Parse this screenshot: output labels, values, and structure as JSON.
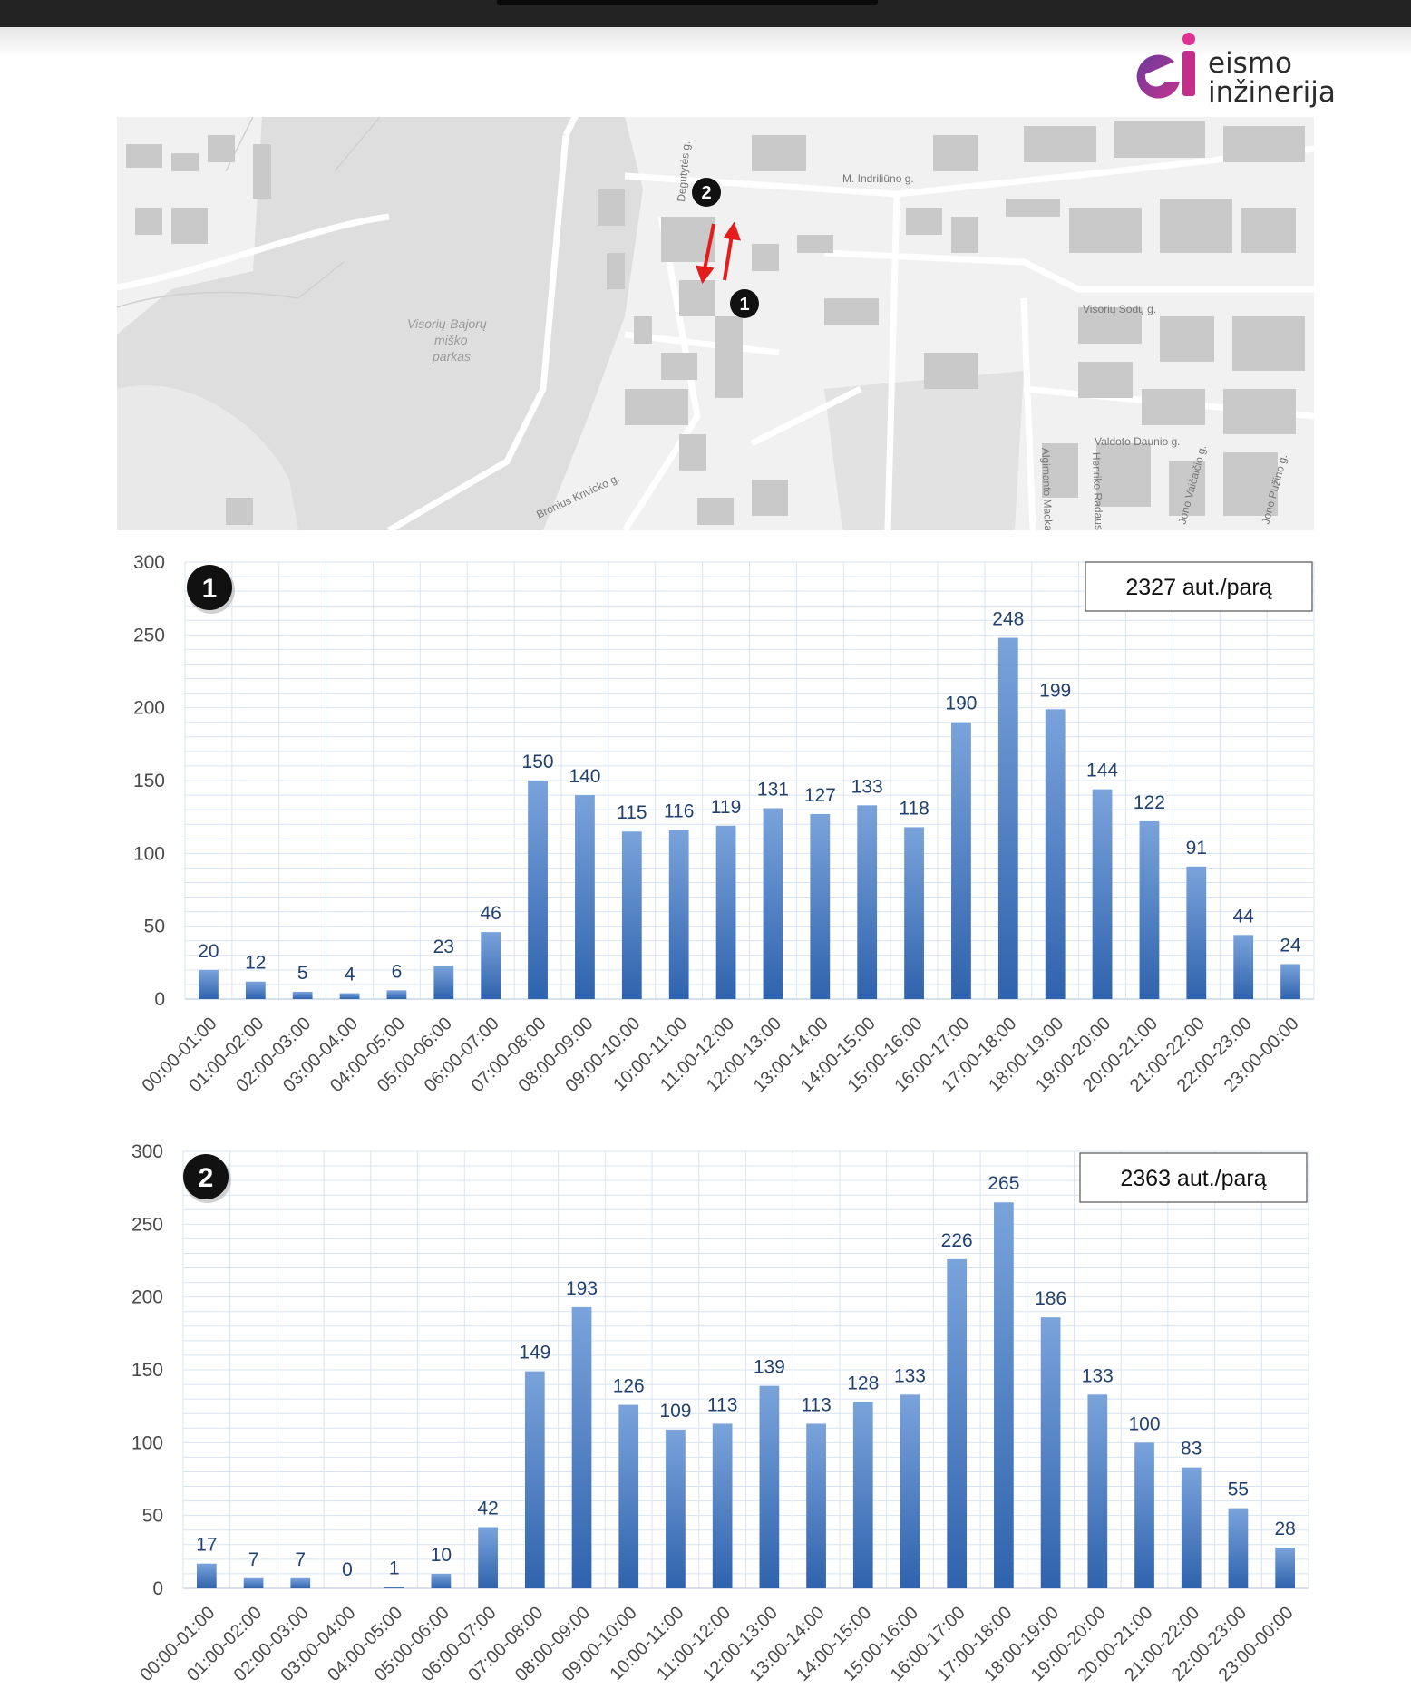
{
  "header": {
    "logo_text_line1": "eismo",
    "logo_text_line2": "inžinerija",
    "accent_colors": [
      "#7a3fa0",
      "#e0338f"
    ]
  },
  "map": {
    "park_label": [
      "Visorių-Bajorų",
      "miško",
      "parkas"
    ],
    "street_labels": [
      "M. Indriliūno g.",
      "Degutytės g.",
      "Bronius Krivicko g.",
      "Visorių Sodų g.",
      "Valdoto Daunio g.",
      "Henriko Radausko g.",
      "Algimanto Mackaus g.",
      "Jono Vaičaičio g.",
      "Jono Pužino g."
    ],
    "markers": [
      "1",
      "2"
    ],
    "direction_arrow_color": "#e51c1c"
  },
  "chart_data": [
    {
      "type": "bar",
      "marker": "1",
      "total_label": "2327 aut./parą",
      "categories": [
        "00:00-01:00",
        "01:00-02:00",
        "02:00-03:00",
        "03:00-04:00",
        "04:00-05:00",
        "05:00-06:00",
        "06:00-07:00",
        "07:00-08:00",
        "08:00-09:00",
        "09:00-10:00",
        "10:00-11:00",
        "11:00-12:00",
        "12:00-13:00",
        "13:00-14:00",
        "14:00-15:00",
        "15:00-16:00",
        "16:00-17:00",
        "17:00-18:00",
        "18:00-19:00",
        "19:00-20:00",
        "20:00-21:00",
        "21:00-22:00",
        "22:00-23:00",
        "23:00-00:00"
      ],
      "values": [
        20,
        12,
        5,
        4,
        6,
        23,
        46,
        150,
        140,
        115,
        116,
        119,
        131,
        127,
        133,
        118,
        190,
        248,
        199,
        144,
        122,
        91,
        44,
        24
      ],
      "yticks": [
        0,
        50,
        100,
        150,
        200,
        250,
        300
      ],
      "ylim": [
        0,
        300
      ],
      "grid": true,
      "bar_color": "#4f7fc2"
    },
    {
      "type": "bar",
      "marker": "2",
      "total_label": "2363 aut./parą",
      "categories": [
        "00:00-01:00",
        "01:00-02:00",
        "02:00-03:00",
        "03:00-04:00",
        "04:00-05:00",
        "05:00-06:00",
        "06:00-07:00",
        "07:00-08:00",
        "08:00-09:00",
        "09:00-10:00",
        "10:00-11:00",
        "11:00-12:00",
        "12:00-13:00",
        "13:00-14:00",
        "14:00-15:00",
        "15:00-16:00",
        "16:00-17:00",
        "17:00-18:00",
        "18:00-19:00",
        "19:00-20:00",
        "20:00-21:00",
        "21:00-22:00",
        "22:00-23:00",
        "23:00-00:00"
      ],
      "values": [
        17,
        7,
        7,
        0,
        1,
        10,
        42,
        149,
        193,
        126,
        109,
        113,
        139,
        113,
        128,
        133,
        226,
        265,
        186,
        133,
        100,
        83,
        55,
        28
      ],
      "yticks": [
        0,
        50,
        100,
        150,
        200,
        250,
        300
      ],
      "ylim": [
        0,
        300
      ],
      "grid": true,
      "bar_color": "#4f7fc2"
    }
  ]
}
